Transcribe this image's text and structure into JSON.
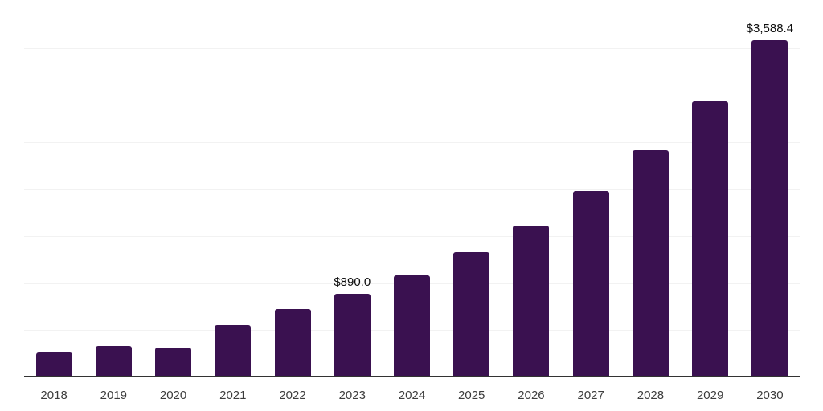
{
  "chart_data": {
    "type": "bar",
    "title": "",
    "xlabel": "",
    "ylabel": "",
    "categories": [
      "2018",
      "2019",
      "2020",
      "2021",
      "2022",
      "2023",
      "2024",
      "2025",
      "2026",
      "2027",
      "2028",
      "2029",
      "2030"
    ],
    "values": [
      265,
      333,
      317,
      557,
      722,
      890,
      1083,
      1333,
      1617,
      1980,
      2414,
      2941,
      3588.4
    ],
    "data_labels": [
      "",
      "",
      "",
      "",
      "",
      "$890.0",
      "",
      "",
      "",
      "",
      "",
      "",
      "$3,588.4"
    ],
    "ylim": [
      0,
      4000
    ],
    "gridline_step": 500,
    "grid": "horizontal gridlines only, no y-axis tick labels",
    "legend_position": "none",
    "colors": {
      "bar": "#3A1150",
      "axis_line": "#333333",
      "gridline": "#F2F2F2",
      "tick_label": "#3D3D3D",
      "data_label": "#0D0D0D",
      "background": "#FFFFFF"
    }
  }
}
